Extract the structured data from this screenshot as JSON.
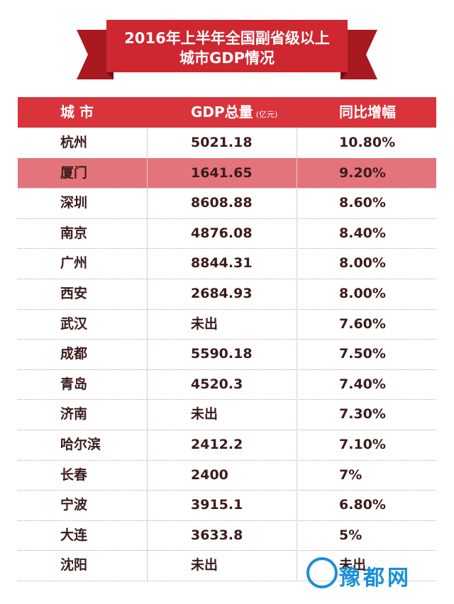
{
  "header": {
    "title": [
      "2016年上半年全国副省级以上",
      "城市GDP情况"
    ]
  },
  "table": {
    "columns": [
      {
        "text": "城 市"
      },
      {
        "text": "GDP总量",
        "unit": "(亿元)"
      },
      {
        "text": "同比增幅"
      }
    ],
    "highlight_row": 1,
    "rows": [
      [
        "杭州",
        "5021.18",
        "10.80%"
      ],
      [
        "厦门",
        "1641.65",
        "9.20%"
      ],
      [
        "深圳",
        "8608.88",
        "8.60%"
      ],
      [
        "南京",
        "4876.08",
        "8.40%"
      ],
      [
        "广州",
        "8844.31",
        "8.00%"
      ],
      [
        "西安",
        "2684.93",
        "8.00%"
      ],
      [
        "武汉",
        "未出",
        "7.60%"
      ],
      [
        "成都",
        "5590.18",
        "7.50%"
      ],
      [
        "青岛",
        "4520.3",
        "7.40%"
      ],
      [
        "济南",
        "未出",
        "7.30%"
      ],
      [
        "哈尔滨",
        "2412.2",
        "7.10%"
      ],
      [
        "长春",
        "2400",
        "7%"
      ],
      [
        "宁波",
        "3915.1",
        "6.80%"
      ],
      [
        "大连",
        "3633.8",
        "5%"
      ],
      [
        "沈阳",
        "未出",
        "未出"
      ]
    ]
  },
  "watermark": {
    "text": "豫都网"
  }
}
